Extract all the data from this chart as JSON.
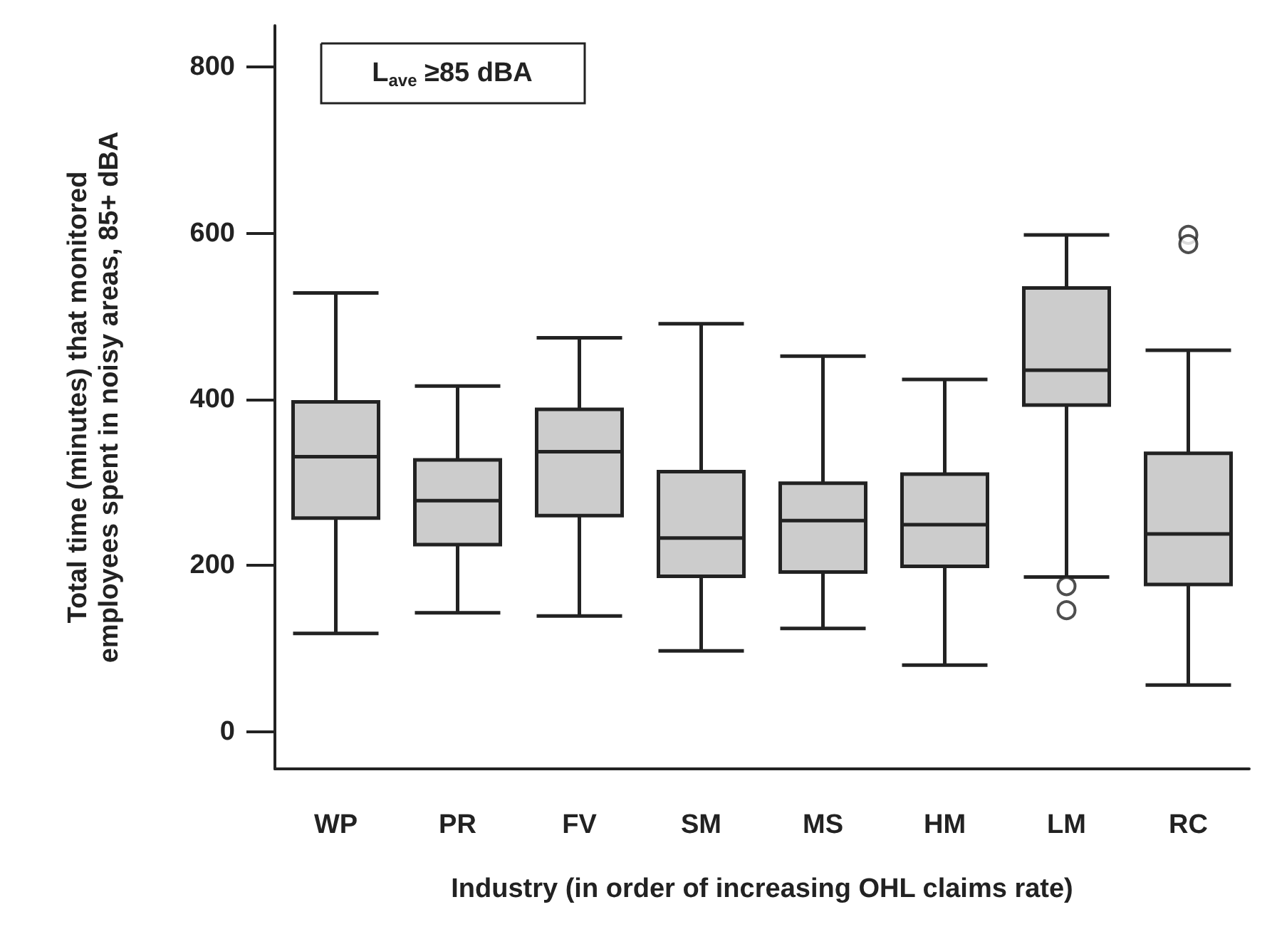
{
  "chart_data": {
    "type": "box",
    "xlabel": "Industry (in order of increasing OHL claims rate)",
    "ylabel": "Total time (minutes) that monitored\nemployees spent in noisy areas, 85+ dBA",
    "annotations": [
      "L$_{ave}$ ≥85 dBA"
    ],
    "categories": [
      "WP",
      "PR",
      "FV",
      "SM",
      "MS",
      "HM",
      "LM",
      "RC"
    ],
    "boxes": [
      {
        "low": 118,
        "q1": 257,
        "median": 331,
        "q3": 397,
        "high": 528
      },
      {
        "low": 143,
        "q1": 225,
        "median": 278,
        "q3": 327,
        "high": 416
      },
      {
        "low": 139,
        "q1": 260,
        "median": 337,
        "q3": 388,
        "high": 474
      },
      {
        "low": 97,
        "q1": 187,
        "median": 233,
        "q3": 313,
        "high": 491
      },
      {
        "low": 124,
        "q1": 192,
        "median": 254,
        "q3": 299,
        "high": 452
      },
      {
        "low": 80,
        "q1": 199,
        "median": 249,
        "q3": 310,
        "high": 424
      },
      {
        "low": 186,
        "q1": 393,
        "median": 435,
        "q3": 534,
        "high": 598,
        "outliers": [
          175,
          146
        ]
      },
      {
        "low": 56,
        "q1": 177,
        "median": 238,
        "q3": 335,
        "high": 459,
        "outliers": [
          598,
          587
        ]
      }
    ],
    "color": "#cccccc",
    "ylim": [
      -45,
      850
    ],
    "yticks": [
      0,
      200,
      400,
      600,
      800
    ],
    "grid": false
  }
}
